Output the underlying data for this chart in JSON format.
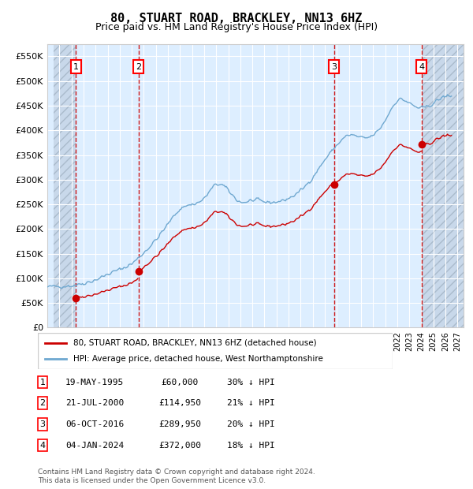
{
  "title": "80, STUART ROAD, BRACKLEY, NN13 6HZ",
  "subtitle": "Price paid vs. HM Land Registry's House Price Index (HPI)",
  "transactions": [
    {
      "num": 1,
      "date": "19-MAY-1995",
      "date_val": 1995.38,
      "price": 60000,
      "label": "30% ↓ HPI"
    },
    {
      "num": 2,
      "date": "21-JUL-2000",
      "date_val": 2000.55,
      "price": 114950,
      "label": "21% ↓ HPI"
    },
    {
      "num": 3,
      "date": "06-OCT-2016",
      "date_val": 2016.76,
      "price": 289950,
      "label": "20% ↓ HPI"
    },
    {
      "num": 4,
      "date": "04-JAN-2024",
      "date_val": 2024.01,
      "price": 372000,
      "label": "18% ↓ HPI"
    }
  ],
  "legend_property": "80, STUART ROAD, BRACKLEY, NN13 6HZ (detached house)",
  "legend_hpi": "HPI: Average price, detached house, West Northamptonshire",
  "footer": "Contains HM Land Registry data © Crown copyright and database right 2024.\nThis data is licensed under the Open Government Licence v3.0.",
  "hpi_color": "#6fa8d0",
  "property_color": "#cc0000",
  "vline_color": "#cc0000",
  "background_plot": "#ddeeff",
  "background_hatch": "#c8d8e8",
  "ylim": [
    0,
    575000
  ],
  "xlim_start": 1993.5,
  "xlim_end": 2027.5
}
